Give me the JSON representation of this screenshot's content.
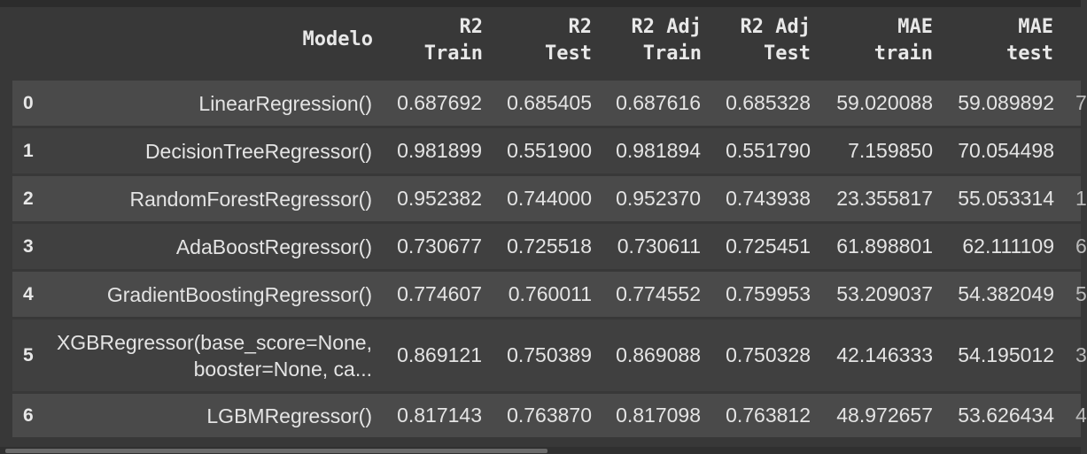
{
  "table": {
    "columns": [
      {
        "lines": [
          "Modelo"
        ]
      },
      {
        "lines": [
          "R2",
          "Train"
        ]
      },
      {
        "lines": [
          "R2",
          "Test"
        ]
      },
      {
        "lines": [
          "R2 Adj",
          "Train"
        ]
      },
      {
        "lines": [
          "R2 Adj",
          "Test"
        ]
      },
      {
        "lines": [
          "MAE",
          "train"
        ]
      },
      {
        "lines": [
          "MAE",
          "test"
        ]
      }
    ],
    "rows": [
      {
        "index": "0",
        "model": [
          "LinearRegression()"
        ],
        "r2_train": "0.687692",
        "r2_test": "0.685405",
        "r2adj_train": "0.687616",
        "r2adj_test": "0.685328",
        "mae_train": "59.020088",
        "mae_test": "59.089892",
        "cut": "7"
      },
      {
        "index": "1",
        "model": [
          "DecisionTreeRegressor()"
        ],
        "r2_train": "0.981899",
        "r2_test": "0.551900",
        "r2adj_train": "0.981894",
        "r2adj_test": "0.551790",
        "mae_train": "7.159850",
        "mae_test": "70.054498",
        "cut": ""
      },
      {
        "index": "2",
        "model": [
          "RandomForestRegressor()"
        ],
        "r2_train": "0.952382",
        "r2_test": "0.744000",
        "r2adj_train": "0.952370",
        "r2adj_test": "0.743938",
        "mae_train": "23.355817",
        "mae_test": "55.053314",
        "cut": "1"
      },
      {
        "index": "3",
        "model": [
          "AdaBoostRegressor()"
        ],
        "r2_train": "0.730677",
        "r2_test": "0.725518",
        "r2adj_train": "0.730611",
        "r2adj_test": "0.725451",
        "mae_train": "61.898801",
        "mae_test": "62.111109",
        "cut": "6"
      },
      {
        "index": "4",
        "model": [
          "GradientBoostingRegressor()"
        ],
        "r2_train": "0.774607",
        "r2_test": "0.760011",
        "r2adj_train": "0.774552",
        "r2adj_test": "0.759953",
        "mae_train": "53.209037",
        "mae_test": "54.382049",
        "cut": "5"
      },
      {
        "index": "5",
        "model": [
          "XGBRegressor(base_score=None,",
          "booster=None, ca..."
        ],
        "r2_train": "0.869121",
        "r2_test": "0.750389",
        "r2adj_train": "0.869088",
        "r2adj_test": "0.750328",
        "mae_train": "42.146333",
        "mae_test": "54.195012",
        "cut": "3"
      },
      {
        "index": "6",
        "model": [
          "LGBMRegressor()"
        ],
        "r2_train": "0.817143",
        "r2_test": "0.763870",
        "r2adj_train": "0.817098",
        "r2adj_test": "0.763812",
        "mae_train": "48.972657",
        "mae_test": "53.626434",
        "cut": "4"
      }
    ]
  },
  "colors": {
    "background": "#383838",
    "row_odd": "#4a4a4a",
    "row_even": "#404040",
    "text": "#e4e4e4"
  }
}
